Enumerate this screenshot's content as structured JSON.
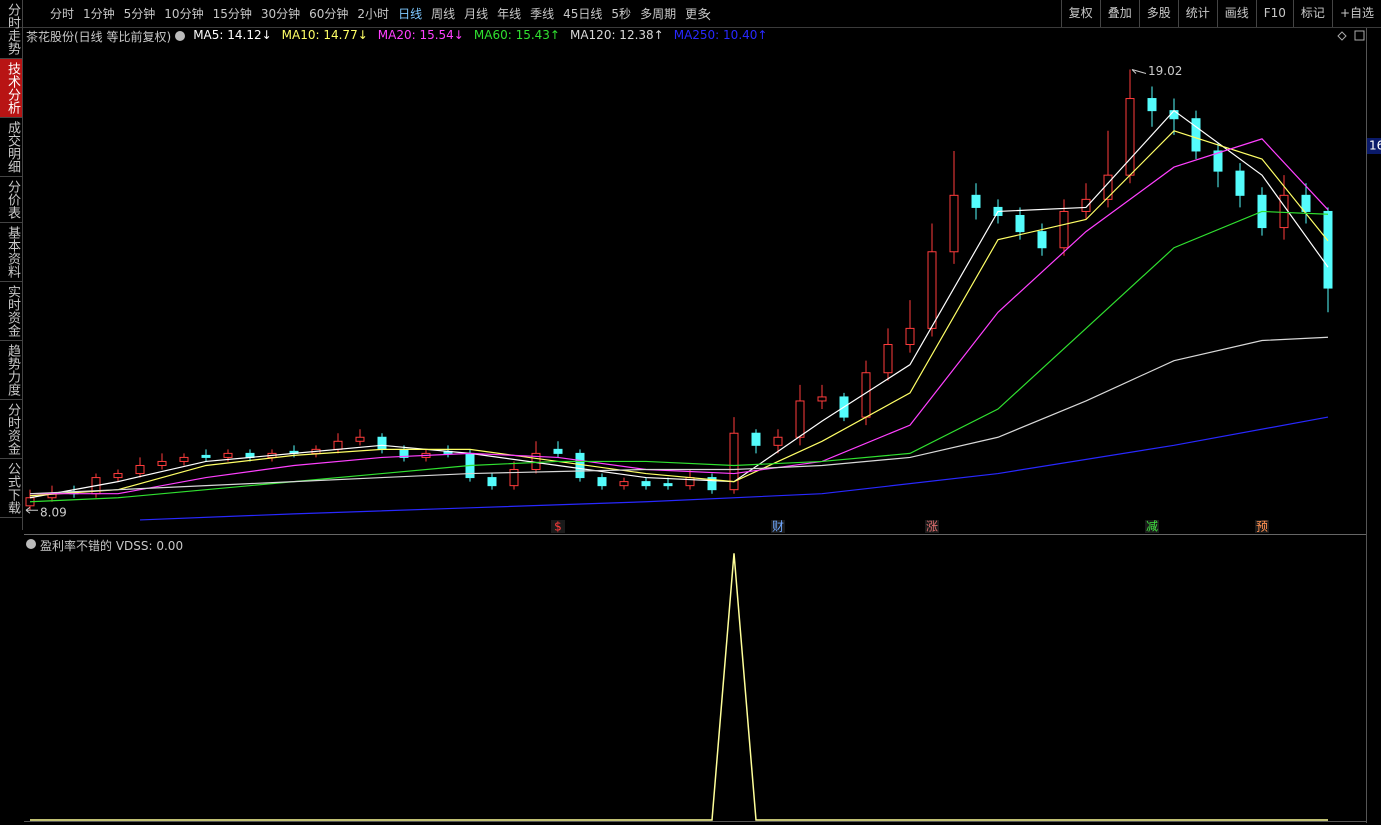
{
  "toolbar": {
    "periods": [
      "分时",
      "1分钟",
      "5分钟",
      "10分钟",
      "15分钟",
      "30分钟",
      "60分钟",
      "2小时",
      "日线",
      "周线",
      "月线",
      "年线",
      "季线",
      "45日线",
      "5秒",
      "多周期",
      "更多"
    ],
    "active_period": 8,
    "tools": [
      "复权",
      "叠加",
      "多股",
      "统计",
      "画线",
      "F10",
      "标记",
      "+自选"
    ]
  },
  "sidebar": {
    "tabs": [
      "分时走势",
      "技术分析",
      "成交明细",
      "分价表",
      "基本资料",
      "实时资金",
      "趋势力度",
      "分时资金",
      "公式下载"
    ],
    "active_tab": 1
  },
  "chart_data": [
    {
      "type": "candlestick",
      "title": "茶花股份(日线 等比前复权)",
      "up_color": "#ff3c3c",
      "down_color": "#54fcfc",
      "open": [
        8.2,
        8.4,
        8.55,
        8.5,
        8.9,
        9.0,
        9.2,
        9.3,
        9.45,
        9.4,
        9.5,
        9.4,
        9.55,
        9.5,
        9.6,
        9.8,
        9.9,
        9.6,
        9.4,
        9.55,
        9.5,
        8.9,
        8.7,
        9.1,
        9.6,
        9.5,
        8.9,
        8.7,
        8.8,
        8.75,
        8.7,
        8.9,
        8.6,
        10.0,
        9.7,
        9.9,
        10.8,
        10.9,
        10.4,
        11.5,
        12.2,
        12.6,
        14.5,
        15.9,
        15.6,
        15.4,
        15.0,
        14.6,
        15.5,
        15.8,
        16.4,
        18.3,
        18.0,
        17.8,
        17.0,
        16.5,
        15.9,
        15.1,
        15.9,
        15.5
      ],
      "high": [
        8.6,
        8.7,
        8.7,
        9.0,
        9.1,
        9.4,
        9.5,
        9.5,
        9.6,
        9.6,
        9.6,
        9.6,
        9.7,
        9.7,
        10.0,
        10.1,
        10.0,
        9.7,
        9.6,
        9.7,
        9.6,
        9.0,
        9.3,
        9.8,
        9.8,
        9.6,
        9.0,
        8.9,
        8.9,
        8.9,
        9.1,
        9.0,
        10.4,
        10.1,
        10.1,
        11.2,
        11.2,
        11.0,
        11.8,
        12.6,
        13.3,
        15.2,
        17.0,
        16.2,
        15.8,
        15.6,
        15.2,
        15.8,
        16.2,
        17.5,
        19.02,
        18.6,
        18.3,
        18.0,
        17.2,
        16.7,
        16.1,
        16.4,
        16.2,
        15.6
      ],
      "low": [
        8.09,
        8.3,
        8.4,
        8.4,
        8.8,
        8.9,
        9.1,
        9.2,
        9.3,
        9.3,
        9.3,
        9.3,
        9.4,
        9.4,
        9.5,
        9.7,
        9.5,
        9.3,
        9.3,
        9.4,
        8.8,
        8.6,
        8.6,
        9.0,
        9.4,
        8.8,
        8.6,
        8.6,
        8.6,
        8.6,
        8.6,
        8.5,
        8.5,
        9.5,
        9.5,
        9.7,
        10.6,
        10.3,
        10.2,
        11.3,
        12.0,
        12.4,
        14.2,
        15.3,
        15.2,
        14.8,
        14.4,
        14.4,
        15.3,
        15.6,
        16.2,
        17.6,
        17.4,
        16.8,
        16.1,
        15.6,
        14.9,
        14.8,
        15.2,
        13.0
      ],
      "close": [
        8.4,
        8.5,
        8.5,
        8.9,
        9.0,
        9.2,
        9.3,
        9.4,
        9.4,
        9.5,
        9.4,
        9.5,
        9.5,
        9.6,
        9.8,
        9.9,
        9.6,
        9.4,
        9.5,
        9.5,
        8.9,
        8.7,
        9.1,
        9.5,
        9.5,
        8.9,
        8.7,
        8.8,
        8.7,
        8.7,
        8.9,
        8.6,
        10.0,
        9.7,
        9.9,
        10.8,
        10.9,
        10.4,
        11.5,
        12.2,
        12.6,
        14.5,
        15.9,
        15.6,
        15.4,
        15.0,
        14.6,
        15.5,
        15.8,
        16.4,
        18.3,
        18.0,
        17.8,
        17.0,
        16.5,
        15.9,
        15.1,
        15.9,
        15.5,
        13.6
      ],
      "series": [
        {
          "name": "MA5",
          "legend_label": "MA5: 14.12↓",
          "color": "#ffffff",
          "x": [
            0,
            4,
            8,
            12,
            16,
            20,
            24,
            28,
            32,
            36,
            40,
            44,
            48,
            52,
            56,
            59
          ],
          "values": [
            8.4,
            8.8,
            9.3,
            9.5,
            9.7,
            9.5,
            9.2,
            8.9,
            8.8,
            10.3,
            11.7,
            15.5,
            15.6,
            18.0,
            16.4,
            14.12
          ]
        },
        {
          "name": "MA10",
          "legend_label": "MA10: 14.77↓",
          "color": "#ffff66",
          "x": [
            0,
            4,
            8,
            12,
            16,
            20,
            24,
            28,
            32,
            36,
            40,
            44,
            48,
            52,
            56,
            59
          ],
          "values": [
            8.45,
            8.6,
            9.2,
            9.45,
            9.6,
            9.6,
            9.3,
            9.0,
            8.8,
            9.8,
            11.0,
            14.8,
            15.3,
            17.5,
            16.8,
            14.77
          ]
        },
        {
          "name": "MA20",
          "legend_label": "MA20: 15.54↓",
          "color": "#ff40ff",
          "x": [
            0,
            4,
            8,
            12,
            16,
            20,
            24,
            28,
            32,
            36,
            40,
            44,
            48,
            52,
            56,
            59
          ],
          "values": [
            8.5,
            8.5,
            8.9,
            9.2,
            9.4,
            9.5,
            9.4,
            9.1,
            9.0,
            9.3,
            10.2,
            13.0,
            15.0,
            16.6,
            17.3,
            15.54
          ]
        },
        {
          "name": "MA60",
          "legend_label": "MA60: 15.43↑",
          "color": "#30e030",
          "x": [
            0,
            4,
            8,
            12,
            16,
            20,
            24,
            28,
            32,
            36,
            40,
            44,
            48,
            52,
            56,
            59
          ],
          "values": [
            8.3,
            8.4,
            8.6,
            8.8,
            9.0,
            9.2,
            9.3,
            9.3,
            9.2,
            9.3,
            9.5,
            10.6,
            12.6,
            14.6,
            15.5,
            15.43
          ]
        },
        {
          "name": "MA120",
          "legend_label": "MA120: 12.38↑",
          "color": "#d8d8d8",
          "x": [
            0,
            4,
            8,
            12,
            16,
            20,
            24,
            28,
            32,
            36,
            40,
            44,
            48,
            52,
            56,
            59
          ],
          "values": [
            8.5,
            8.6,
            8.7,
            8.8,
            8.9,
            9.0,
            9.05,
            9.1,
            9.1,
            9.2,
            9.4,
            9.9,
            10.8,
            11.8,
            12.3,
            12.38
          ]
        },
        {
          "name": "MA250",
          "legend_label": "MA250: 10.40↑",
          "color": "#2828ff",
          "x": [
            5,
            12,
            20,
            28,
            36,
            44,
            52,
            59
          ],
          "values": [
            7.85,
            8.0,
            8.15,
            8.3,
            8.5,
            9.0,
            9.7,
            10.4
          ]
        }
      ],
      "events": [
        {
          "label": "$",
          "index": 24,
          "color": "#ff3c3c"
        },
        {
          "label": "财",
          "index": 34,
          "color": "#6fa8ff"
        },
        {
          "label": "涨",
          "index": 41,
          "color": "#e07070"
        },
        {
          "label": "减",
          "index": 51,
          "color": "#40e040"
        },
        {
          "label": "预",
          "index": 56,
          "color": "#ff9050"
        }
      ],
      "right_tag": "16",
      "ylim": [
        7.6,
        20
      ]
    },
    {
      "type": "line",
      "title": "盈利率不错的 VDSS: 0.00",
      "color": "#ffff99",
      "values": [
        0,
        0,
        0,
        0,
        0,
        0,
        0,
        0,
        0,
        0,
        0,
        0,
        0,
        0,
        0,
        0,
        0,
        0,
        0,
        0,
        0,
        0,
        0,
        0,
        0,
        0,
        0,
        0,
        0,
        0,
        0,
        0,
        1,
        0,
        0,
        0,
        0,
        0,
        0,
        0,
        0,
        0,
        0,
        0,
        0,
        0,
        0,
        0,
        0,
        0,
        0,
        0,
        0,
        0,
        0,
        0,
        0,
        0,
        0,
        0
      ],
      "ylim": [
        0,
        1.05
      ]
    }
  ]
}
